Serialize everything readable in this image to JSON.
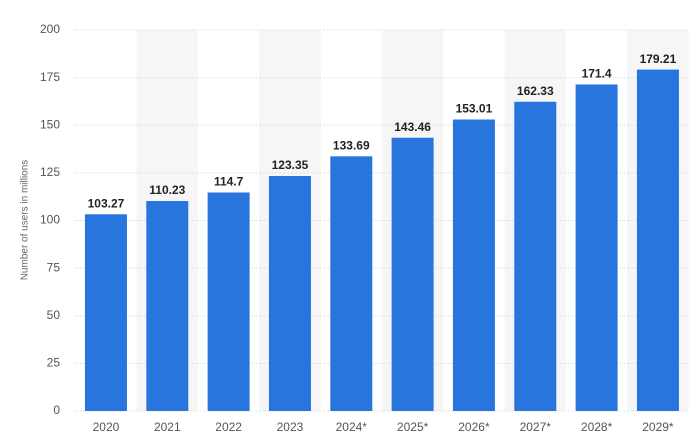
{
  "chart_data": {
    "type": "bar",
    "y_label": "Number of users in millions",
    "categories": [
      "2020",
      "2021",
      "2022",
      "2023",
      "2024*",
      "2025*",
      "2026*",
      "2027*",
      "2028*",
      "2029*"
    ],
    "values": [
      103.27,
      110.23,
      114.7,
      123.35,
      133.69,
      143.46,
      153.01,
      162.33,
      171.4,
      179.21
    ],
    "color": "#2876dd",
    "ylim": [
      0,
      200
    ],
    "yticks": [
      0,
      25,
      50,
      75,
      100,
      125,
      150,
      175,
      200
    ],
    "grid": true
  }
}
